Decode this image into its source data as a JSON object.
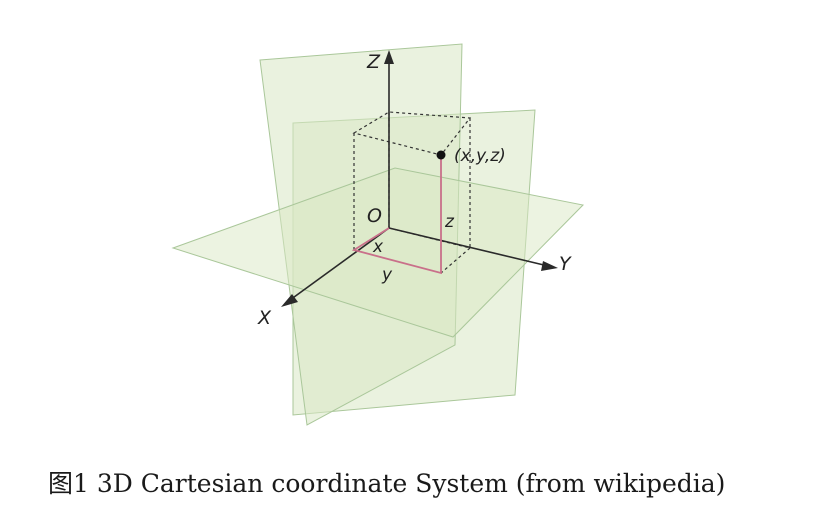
{
  "diagram": {
    "axis_labels": {
      "x": "X",
      "y": "Y",
      "z": "Z"
    },
    "origin_label": "O",
    "point_label": "(x,y,z)",
    "component_labels": {
      "x": "x",
      "y": "y",
      "z": "z"
    },
    "colors": {
      "plane_fill": "#d9e8c4",
      "plane_stroke": "#aac79a",
      "axis": "#2a2a2a",
      "coordinate_path": "#c9708a",
      "dashed_box": "#333333"
    }
  },
  "caption": {
    "prefix": "图1 ",
    "text": "3D Cartesian coordinate System (from wikipedia)"
  }
}
